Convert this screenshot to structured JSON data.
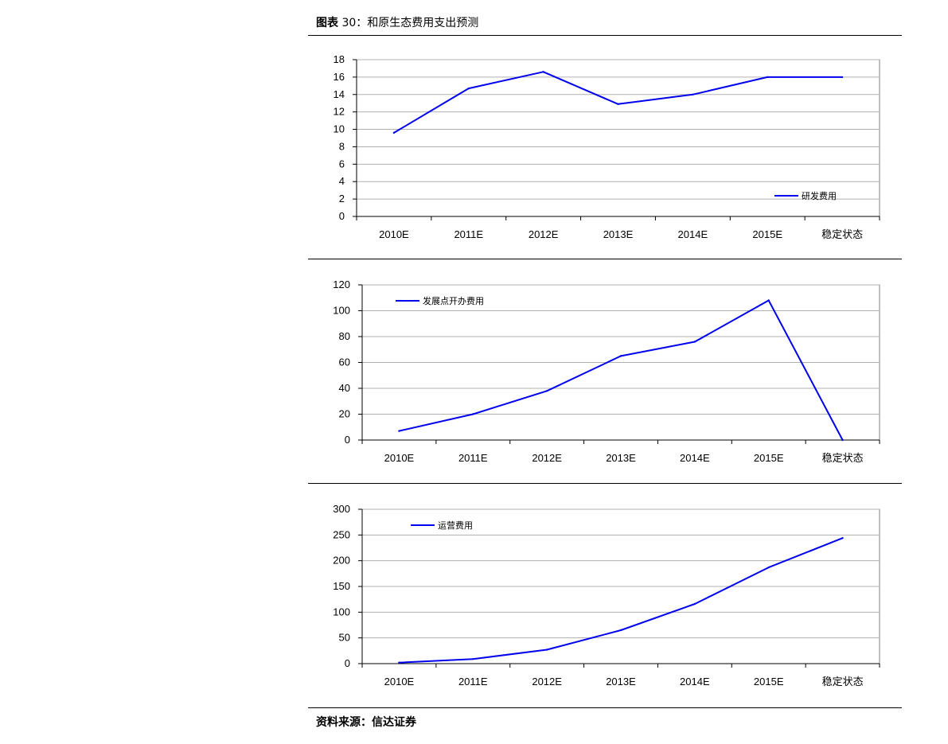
{
  "header": {
    "prefix": "图表",
    "title": "30：和原生态费用支出预测"
  },
  "footer": {
    "source": "资料来源：信达证券"
  },
  "chart_data": [
    {
      "type": "line",
      "categories": [
        "2010E",
        "2011E",
        "2012E",
        "2013E",
        "2014E",
        "2015E",
        "稳定状态"
      ],
      "series": [
        {
          "name": "研发费用",
          "values": [
            9.6,
            14.7,
            16.6,
            12.9,
            14.0,
            16.0,
            16.0
          ]
        }
      ],
      "ylim": [
        0,
        18
      ],
      "yticks": [
        0,
        2,
        4,
        6,
        8,
        10,
        12,
        14,
        16,
        18
      ],
      "grid": true,
      "legend": "bottom-right",
      "color": "#0000ee"
    },
    {
      "type": "line",
      "categories": [
        "2010E",
        "2011E",
        "2012E",
        "2013E",
        "2014E",
        "2015E",
        "稳定状态"
      ],
      "series": [
        {
          "name": "发展点开办费用",
          "values": [
            7,
            20,
            38,
            65,
            76,
            108,
            0
          ]
        }
      ],
      "ylim": [
        0,
        120
      ],
      "yticks": [
        0,
        20,
        40,
        60,
        80,
        100,
        120
      ],
      "grid": true,
      "legend": "top-left",
      "color": "#0000ee"
    },
    {
      "type": "line",
      "categories": [
        "2010E",
        "2011E",
        "2012E",
        "2013E",
        "2014E",
        "2015E",
        "稳定状态"
      ],
      "series": [
        {
          "name": "运营费用",
          "values": [
            2,
            9,
            27,
            65,
            116,
            187,
            244
          ]
        }
      ],
      "ylim": [
        0,
        300
      ],
      "yticks": [
        0,
        50,
        100,
        150,
        200,
        250,
        300
      ],
      "grid": true,
      "legend": "top-left",
      "color": "#0000ee"
    }
  ]
}
